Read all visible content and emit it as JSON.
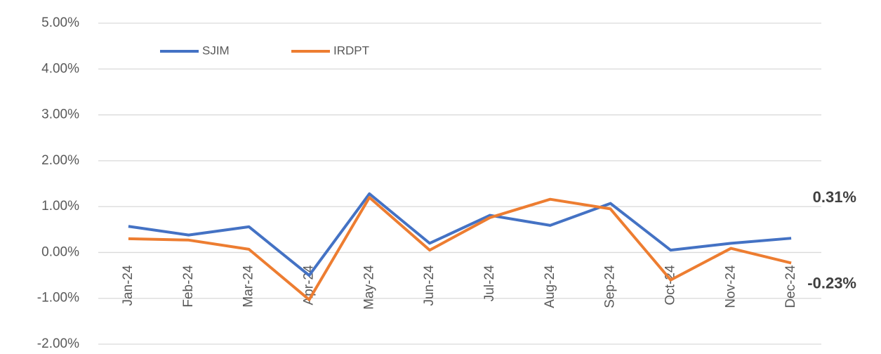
{
  "chart_data": {
    "type": "line",
    "categories": [
      "Jan-24",
      "Feb-24",
      "Mar-24",
      "Apr-24",
      "May-24",
      "Jun-24",
      "Jul-24",
      "Aug-24",
      "Sep-24",
      "Oct-24",
      "Nov-24",
      "Dec-24"
    ],
    "series": [
      {
        "name": "SJIM",
        "color": "#4472c4",
        "values": [
          0.57,
          0.38,
          0.56,
          -0.5,
          1.28,
          0.2,
          0.81,
          0.59,
          1.07,
          0.05,
          0.2,
          0.31
        ],
        "value_labels": [
          null,
          null,
          null,
          null,
          null,
          null,
          null,
          null,
          null,
          null,
          null,
          "0.31%"
        ]
      },
      {
        "name": "IRDPT",
        "color": "#ed7d31",
        "values": [
          0.3,
          0.27,
          0.07,
          -1.03,
          1.2,
          0.05,
          0.76,
          1.16,
          0.95,
          -0.6,
          0.09,
          -0.23
        ],
        "value_labels": [
          null,
          null,
          null,
          null,
          null,
          null,
          null,
          null,
          null,
          null,
          null,
          "-0.23%"
        ]
      }
    ],
    "ylim": [
      -2,
      5
    ],
    "yticks": [
      {
        "value": -2,
        "label": "-2.00%"
      },
      {
        "value": -1,
        "label": "-1.00%"
      },
      {
        "value": 0,
        "label": "0.00%"
      },
      {
        "value": 1,
        "label": "1.00%"
      },
      {
        "value": 2,
        "label": "2.00%"
      },
      {
        "value": 3,
        "label": "3.00%"
      },
      {
        "value": 4,
        "label": "4.00%"
      },
      {
        "value": 5,
        "label": "5.00%"
      }
    ],
    "grid": true,
    "legend": "top-left"
  }
}
